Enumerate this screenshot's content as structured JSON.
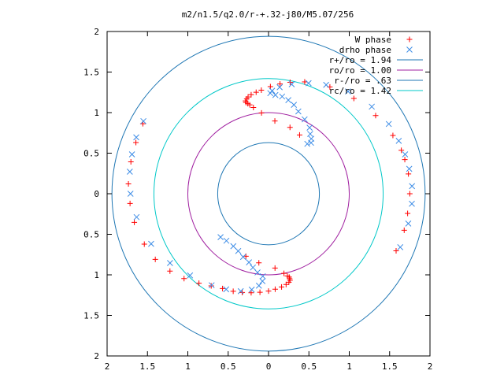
{
  "chart_data": {
    "type": "scatter",
    "title": "m2/n1.5/q2.0/r-+.32-j80/M5.07/256",
    "xlim": [
      -2,
      2
    ],
    "ylim": [
      -2,
      2
    ],
    "x_ticks": [
      -2,
      -1.5,
      -1,
      -0.5,
      0,
      0.5,
      1,
      1.5,
      2
    ],
    "y_ticks": [
      -2,
      -1.5,
      -1,
      -0.5,
      0,
      0.5,
      1,
      1.5,
      2
    ],
    "x_tick_labels": [
      "2",
      "1.5",
      "1",
      "0.5",
      "0",
      "0.5",
      "1",
      "1.5",
      "2"
    ],
    "y_tick_labels": [
      "2",
      "1.5",
      "1",
      "0.5",
      "0",
      "0.5",
      "1",
      "1.5",
      "2"
    ],
    "xlabel": "",
    "ylabel": "",
    "grid": false,
    "legend_position": "top-right",
    "series": [
      {
        "name": "W phase",
        "kind": "points",
        "marker": "plus",
        "color": "#ff0000",
        "arm1": {
          "r": [
            0.82,
            0.86,
            0.9,
            1.0,
            1.08,
            1.12,
            1.14,
            1.16,
            1.18,
            1.2,
            1.22,
            1.24,
            1.26,
            1.28,
            1.32,
            1.36,
            1.4,
            1.45,
            1.52,
            1.58,
            1.64,
            1.7,
            1.73,
            1.74,
            1.75,
            1.75,
            1.74,
            1.74,
            1.73
          ],
          "theta": [
            62,
            72,
            85,
            95,
            100,
            102,
            103,
            104,
            104,
            103,
            102,
            100,
            97,
            94,
            89,
            84,
            79,
            72,
            60,
            48,
            36,
            25,
            18,
            14,
            8,
            0,
            -8,
            -15,
            -24
          ]
        },
        "arm2": {
          "r": [
            1.78,
            1.76,
            1.75,
            1.74,
            1.72,
            1.7,
            1.66,
            1.62,
            1.55,
            1.48,
            1.4,
            1.34,
            1.3,
            1.28,
            1.26,
            1.24,
            1.22,
            1.2,
            1.18,
            1.16,
            1.14,
            1.12,
            1.1,
            1.08,
            1.06,
            1.04,
            1.0,
            0.92,
            0.86,
            0.82
          ],
          "theta": [
            151,
            159,
            167,
            176,
            184,
            192,
            202,
            210,
            218,
            225,
            232,
            238,
            244,
            250,
            255,
            260,
            265,
            270,
            274,
            278,
            281,
            283,
            284,
            284,
            284,
            283,
            281,
            275,
            262,
            250
          ]
        }
      },
      {
        "name": "drho phase",
        "kind": "points",
        "marker": "cross",
        "color": "#3c8ce6",
        "arm1": {
          "r": [
            0.78,
            0.82,
            0.86,
            0.9,
            0.96,
            1.02,
            1.08,
            1.14,
            1.18,
            1.21,
            1.22,
            1.24,
            1.27,
            1.32,
            1.38,
            1.45,
            1.52,
            1.6,
            1.67,
            1.72,
            1.74,
            1.76,
            1.77,
            1.78,
            1.78,
            1.77,
            1.76
          ],
          "theta": [
            52,
            50,
            52,
            55,
            58,
            64,
            70,
            74,
            78,
            82,
            86,
            89,
            88,
            84,
            78,
            70,
            62,
            52,
            40,
            30,
            22,
            16,
            10,
            3,
            -4,
            -12,
            -22
          ]
        },
        "arm2": {
          "r": [
            1.79,
            1.78,
            1.76,
            1.74,
            1.71,
            1.66,
            1.58,
            1.49,
            1.4,
            1.33,
            1.29,
            1.25,
            1.2,
            1.14,
            1.08,
            1.02,
            0.98,
            0.93,
            0.88,
            0.84,
            0.8,
            0.78,
            0.78,
            0.8
          ],
          "theta": [
            150,
            157,
            164,
            171,
            180,
            190,
            203,
            215,
            226,
            238,
            246,
            254,
            260,
            264,
            266,
            266,
            262,
            258,
            254,
            248,
            242,
            236,
            228,
            222
          ]
        }
      },
      {
        "name": "r+/ro = 1.94",
        "kind": "circle",
        "radius": 1.94,
        "color": "#1f77b4"
      },
      {
        "name": "ro/ro = 1.00",
        "kind": "circle",
        "radius": 1.0,
        "color": "#a020a0"
      },
      {
        "name": "r-/ro = .63",
        "kind": "circle",
        "radius": 0.63,
        "color": "#1f77b4"
      },
      {
        "name": "rc/ro = 1.42",
        "kind": "circle",
        "radius": 1.42,
        "color": "#00c8c8"
      }
    ]
  }
}
